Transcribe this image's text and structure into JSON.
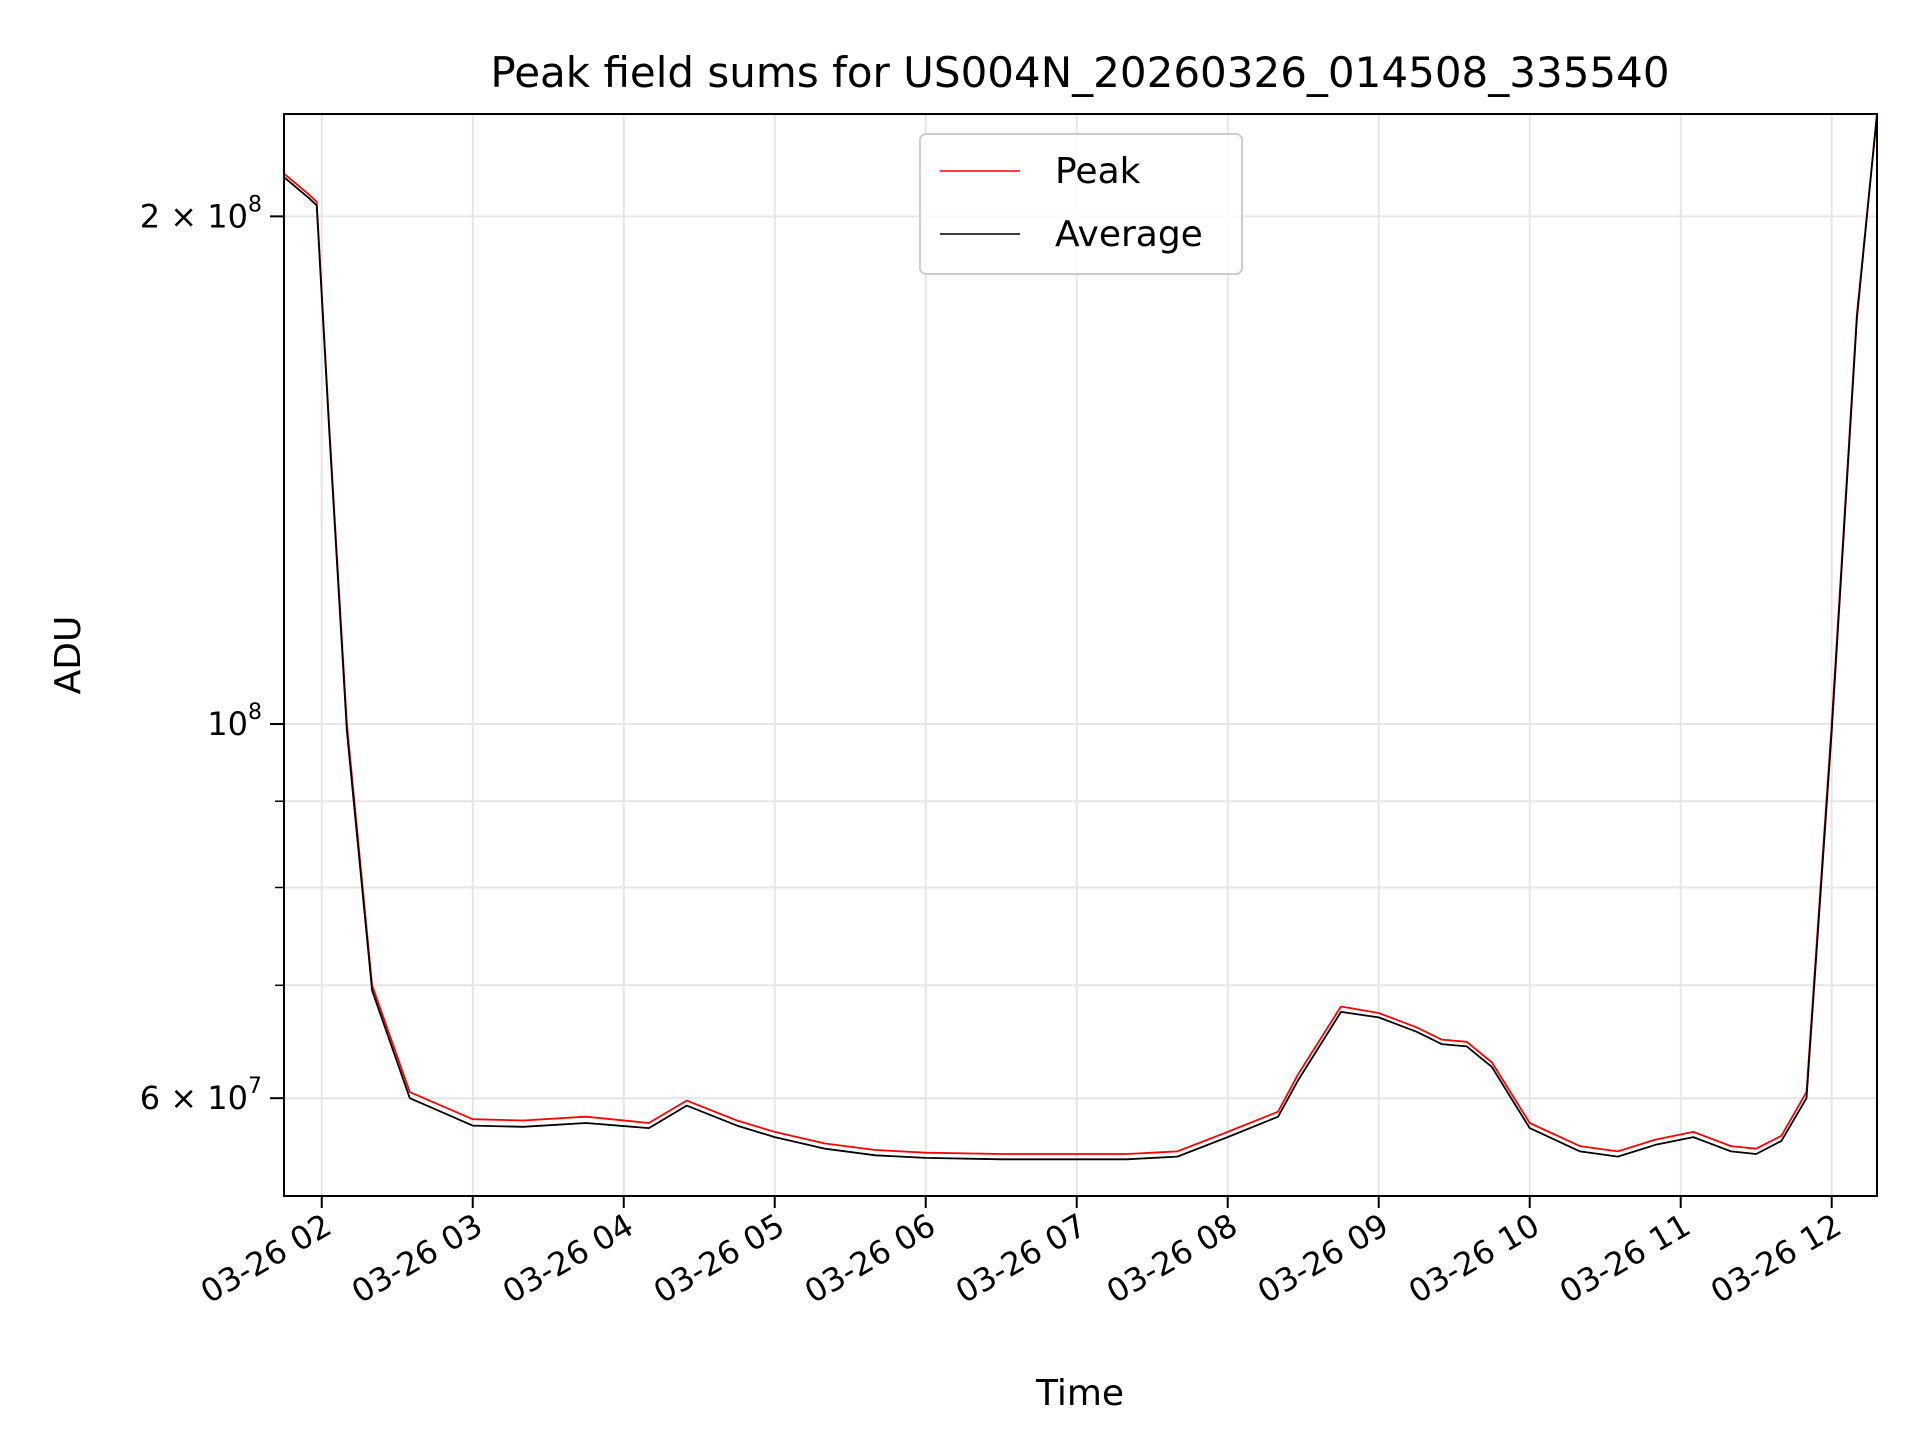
{
  "chart_data": {
    "type": "line",
    "title": "Peak field sums for US004N_20260326_014508_335540",
    "xlabel": "Time",
    "ylabel": "ADU",
    "yscale": "log",
    "grid": true,
    "legend_position": "top-center",
    "xlim": [
      "03-26 01:45",
      "03-26 12:18"
    ],
    "ylim": [
      52500000,
      230000000
    ],
    "x_ticks": [
      "03-26 02",
      "03-26 03",
      "03-26 04",
      "03-26 05",
      "03-26 06",
      "03-26 07",
      "03-26 08",
      "03-26 09",
      "03-26 10",
      "03-26 11",
      "03-26 12"
    ],
    "y_ticks": [
      {
        "value": 200000000,
        "mantissa": "2",
        "exponent": "8"
      },
      {
        "value": 100000000,
        "mantissa": "",
        "exponent": "8"
      },
      {
        "value": 60000000,
        "mantissa": "6",
        "exponent": "7"
      }
    ],
    "series": [
      {
        "name": "Peak",
        "color": "#ff0000",
        "x": [
          "03-26 01:45",
          "03-26 01:55",
          "03-26 01:58",
          "03-26 02:03",
          "03-26 02:10",
          "03-26 02:20",
          "03-26 02:35",
          "03-26 03:00",
          "03-26 03:20",
          "03-26 03:45",
          "03-26 04:10",
          "03-26 04:25",
          "03-26 04:45",
          "03-26 05:00",
          "03-26 05:20",
          "03-26 05:40",
          "03-26 06:00",
          "03-26 06:30",
          "03-26 07:00",
          "03-26 07:20",
          "03-26 07:40",
          "03-26 08:00",
          "03-26 08:20",
          "03-26 08:28",
          "03-26 08:45",
          "03-26 09:00",
          "03-26 09:15",
          "03-26 09:25",
          "03-26 09:35",
          "03-26 09:45",
          "03-26 10:00",
          "03-26 10:20",
          "03-26 10:35",
          "03-26 10:50",
          "03-26 11:05",
          "03-26 11:20",
          "03-26 11:30",
          "03-26 11:40",
          "03-26 11:50",
          "03-26 12:00",
          "03-26 12:10",
          "03-26 12:18"
        ],
        "y": [
          212000000,
          206000000,
          204000000,
          150000000,
          100000000,
          70000000,
          60500000,
          58300000,
          58200000,
          58500000,
          58000000,
          59800000,
          58200000,
          57300000,
          56400000,
          55900000,
          55700000,
          55600000,
          55600000,
          55600000,
          55800000,
          57300000,
          58900000,
          62000000,
          68000000,
          67400000,
          66100000,
          65000000,
          64800000,
          63000000,
          58000000,
          56200000,
          55800000,
          56700000,
          57300000,
          56200000,
          56000000,
          57000000,
          60500000,
          100000000,
          175000000,
          230000000
        ]
      },
      {
        "name": "Average",
        "color": "#000000",
        "x": [
          "03-26 01:45",
          "03-26 01:55",
          "03-26 01:58",
          "03-26 02:03",
          "03-26 02:10",
          "03-26 02:20",
          "03-26 02:35",
          "03-26 03:00",
          "03-26 03:20",
          "03-26 03:45",
          "03-26 04:10",
          "03-26 04:25",
          "03-26 04:45",
          "03-26 05:00",
          "03-26 05:20",
          "03-26 05:40",
          "03-26 06:00",
          "03-26 06:30",
          "03-26 07:00",
          "03-26 07:20",
          "03-26 07:40",
          "03-26 08:00",
          "03-26 08:20",
          "03-26 08:28",
          "03-26 08:45",
          "03-26 09:00",
          "03-26 09:15",
          "03-26 09:25",
          "03-26 09:35",
          "03-26 09:45",
          "03-26 10:00",
          "03-26 10:20",
          "03-26 10:35",
          "03-26 10:50",
          "03-26 11:05",
          "03-26 11:20",
          "03-26 11:30",
          "03-26 11:40",
          "03-26 11:50",
          "03-26 12:00",
          "03-26 12:10",
          "03-26 12:18"
        ],
        "y": [
          211000000,
          205000000,
          203000000,
          149000000,
          99000000,
          69500000,
          60000000,
          57800000,
          57700000,
          58000000,
          57600000,
          59400000,
          57800000,
          56900000,
          56000000,
          55500000,
          55300000,
          55200000,
          55200000,
          55200000,
          55400000,
          56900000,
          58500000,
          61500000,
          67500000,
          67000000,
          65700000,
          64600000,
          64400000,
          62600000,
          57600000,
          55800000,
          55400000,
          56300000,
          56900000,
          55800000,
          55600000,
          56600000,
          60000000,
          99000000,
          174000000,
          230000000
        ]
      }
    ]
  }
}
